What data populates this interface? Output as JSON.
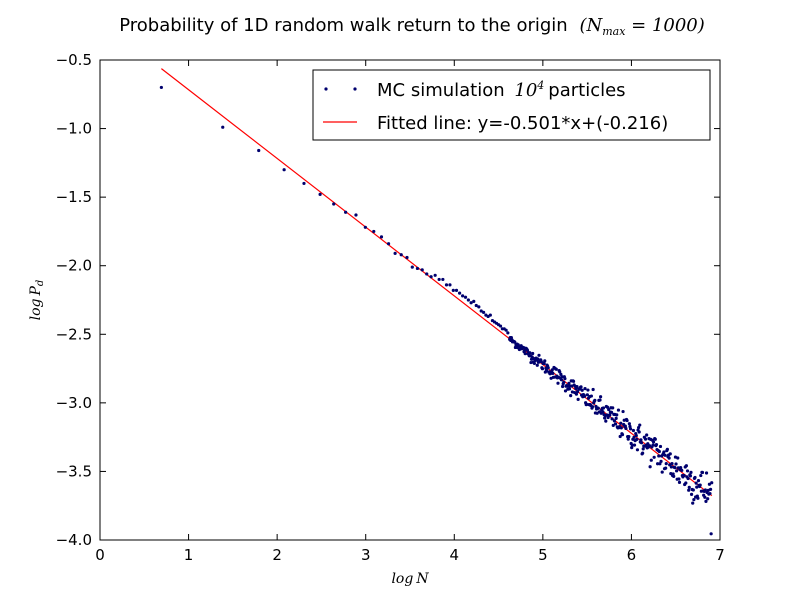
{
  "chart_data": {
    "type": "scatter",
    "title": "Probability of 1D random walk return to the origin (N_max = 1000)",
    "title_main": "Probability of 1D random walk return to the origin",
    "title_math": "(N_max = 1000)",
    "xlabel": "log N",
    "ylabel": "log P_d",
    "xlim": [
      0,
      7
    ],
    "ylim": [
      -4.0,
      -0.5
    ],
    "xticks": [
      0,
      1,
      2,
      3,
      4,
      5,
      6,
      7
    ],
    "xtick_labels": [
      "0",
      "1",
      "2",
      "3",
      "4",
      "5",
      "6",
      "7"
    ],
    "yticks": [
      -0.5,
      -1.0,
      -1.5,
      -2.0,
      -2.5,
      -3.0,
      -3.5,
      -4.0
    ],
    "ytick_labels": [
      "−0.5",
      "−1.0",
      "−1.5",
      "−2.0",
      "−2.5",
      "−3.0",
      "−3.5",
      "−4.0"
    ],
    "grid": false,
    "legend_position": "top-right",
    "series": [
      {
        "name": "MC simulation 10^4 particles",
        "legend_text": "MC simulation",
        "legend_math": "10^4",
        "legend_suffix": "particles",
        "kind": "scatter",
        "color": "#00006e",
        "points": [
          [
            0.693,
            -0.7
          ],
          [
            1.386,
            -0.99
          ],
          [
            1.792,
            -1.16
          ],
          [
            2.079,
            -1.3
          ],
          [
            2.303,
            -1.4
          ],
          [
            2.485,
            -1.48
          ],
          [
            2.639,
            -1.55
          ],
          [
            2.773,
            -1.61
          ],
          [
            2.89,
            -1.63
          ],
          [
            2.996,
            -1.72
          ],
          [
            3.091,
            -1.75
          ],
          [
            3.178,
            -1.79
          ],
          [
            3.258,
            -1.84
          ],
          [
            3.332,
            -1.91
          ],
          [
            3.401,
            -1.92
          ],
          [
            3.466,
            -1.94
          ],
          [
            3.526,
            -2.01
          ],
          [
            3.584,
            -2.02
          ],
          [
            3.638,
            -2.03
          ],
          [
            3.689,
            -2.06
          ],
          [
            3.738,
            -2.08
          ],
          [
            3.784,
            -2.07
          ],
          [
            3.829,
            -2.1
          ],
          [
            3.871,
            -2.1
          ],
          [
            3.912,
            -2.14
          ],
          [
            3.951,
            -2.14
          ],
          [
            3.989,
            -2.18
          ],
          [
            4.025,
            -2.18
          ],
          [
            4.06,
            -2.2
          ],
          [
            4.094,
            -2.22
          ],
          [
            4.127,
            -2.23
          ],
          [
            4.159,
            -2.25
          ],
          [
            4.19,
            -2.27
          ],
          [
            4.22,
            -2.26
          ],
          [
            4.248,
            -2.29
          ],
          [
            4.277,
            -2.3
          ],
          [
            4.304,
            -2.33
          ],
          [
            4.331,
            -2.34
          ],
          [
            4.357,
            -2.36
          ],
          [
            4.382,
            -2.37
          ],
          [
            4.407,
            -2.36
          ],
          [
            4.431,
            -2.4
          ],
          [
            4.454,
            -2.41
          ],
          [
            4.477,
            -2.42
          ],
          [
            4.5,
            -2.43
          ],
          [
            4.522,
            -2.44
          ],
          [
            4.543,
            -2.46
          ],
          [
            4.564,
            -2.46
          ],
          [
            4.585,
            -2.47
          ],
          [
            4.605,
            -2.49
          ]
        ],
        "continuation": {
          "x_start": 4.625,
          "x_end": 6.908,
          "step": 0.0065,
          "slope": -0.501,
          "intercept": -0.216
        }
      },
      {
        "name": "Fitted line: y=-0.501*x+(-0.216)",
        "kind": "line",
        "color": "#ff0000",
        "x": [
          0.693,
          6.908
        ],
        "y": [
          -0.563,
          -3.677
        ]
      }
    ]
  }
}
